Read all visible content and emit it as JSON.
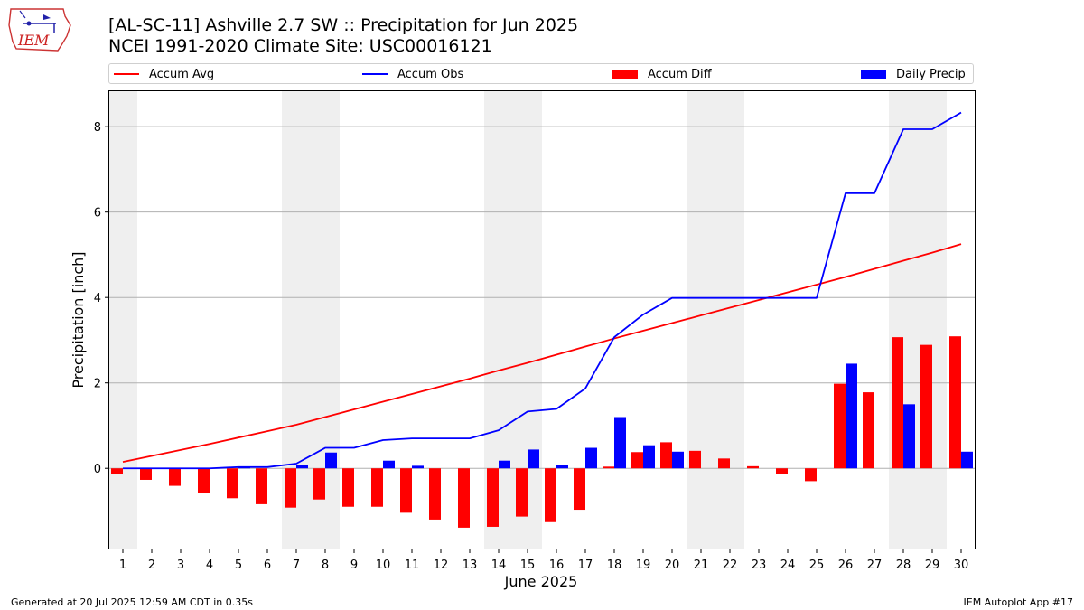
{
  "logo": {
    "text": "IEM"
  },
  "header": {
    "title_line1": "[AL-SC-11] Ashville 2.7 SW :: Precipitation for Jun 2025",
    "title_line2": "NCEI 1991-2020 Climate Site: USC00016121"
  },
  "legend": {
    "accum_avg": "Accum Avg",
    "accum_obs": "Accum Obs",
    "accum_diff": "Accum Diff",
    "daily_precip": "Daily Precip"
  },
  "footer": {
    "generated": "Generated at 20 Jul 2025 12:59 AM CDT in 0.35s",
    "app": "IEM Autoplot App #17"
  },
  "colors": {
    "accum_avg": "#ff0000",
    "accum_obs": "#0000ff",
    "accum_diff": "#ff0000",
    "daily_precip": "#0000ff",
    "weekend_shade": "#efefef",
    "grid": "#b0b0b0"
  },
  "chart_data": {
    "type": "bar",
    "xlabel": "June 2025",
    "ylabel": "Precipitation [inch]",
    "ylim": [
      -1.9,
      8.85
    ],
    "yticks": [
      0,
      2,
      4,
      6,
      8
    ],
    "grid": "horizontal",
    "legend_position": "top",
    "days": [
      1,
      2,
      3,
      4,
      5,
      6,
      7,
      8,
      9,
      10,
      11,
      12,
      13,
      14,
      15,
      16,
      17,
      18,
      19,
      20,
      21,
      22,
      23,
      24,
      25,
      26,
      27,
      28,
      29,
      30
    ],
    "weekend_days": [
      1,
      7,
      8,
      14,
      15,
      21,
      22,
      28,
      29
    ],
    "series": [
      {
        "name": "Accum Avg",
        "kind": "line",
        "values": [
          0.15,
          0.29,
          0.43,
          0.57,
          0.72,
          0.87,
          1.02,
          1.2,
          1.38,
          1.56,
          1.74,
          1.92,
          2.1,
          2.29,
          2.47,
          2.66,
          2.85,
          3.04,
          3.22,
          3.4,
          3.58,
          3.76,
          3.94,
          4.12,
          4.3,
          4.48,
          4.67,
          4.86,
          5.05,
          5.25
        ]
      },
      {
        "name": "Accum Obs",
        "kind": "line",
        "values": [
          0,
          0,
          0,
          0,
          0.03,
          0.03,
          0.11,
          0.48,
          0.48,
          0.66,
          0.7,
          0.7,
          0.7,
          0.89,
          1.33,
          1.39,
          1.87,
          3.07,
          3.6,
          3.99,
          3.99,
          3.99,
          3.99,
          3.99,
          3.99,
          6.44,
          6.44,
          7.94,
          7.94,
          8.33
        ]
      },
      {
        "name": "Accum Diff",
        "kind": "bar",
        "values": [
          -0.13,
          -0.27,
          -0.41,
          -0.57,
          -0.7,
          -0.84,
          -0.92,
          -0.73,
          -0.9,
          -0.9,
          -1.04,
          -1.2,
          -1.39,
          -1.37,
          -1.13,
          -1.26,
          -0.97,
          0.04,
          0.38,
          0.61,
          0.41,
          0.23,
          0.05,
          -0.13,
          -0.3,
          1.98,
          1.78,
          3.07,
          2.89,
          3.09
        ]
      },
      {
        "name": "Daily Precip",
        "kind": "bar",
        "values": [
          0,
          0,
          0,
          0,
          0.03,
          0,
          0.08,
          0.37,
          0,
          0.18,
          0.06,
          0,
          0,
          0.18,
          0.44,
          0.08,
          0.48,
          1.2,
          0.54,
          0.39,
          0,
          0,
          0,
          0,
          0,
          2.45,
          0,
          1.5,
          0,
          0.39
        ]
      }
    ]
  }
}
